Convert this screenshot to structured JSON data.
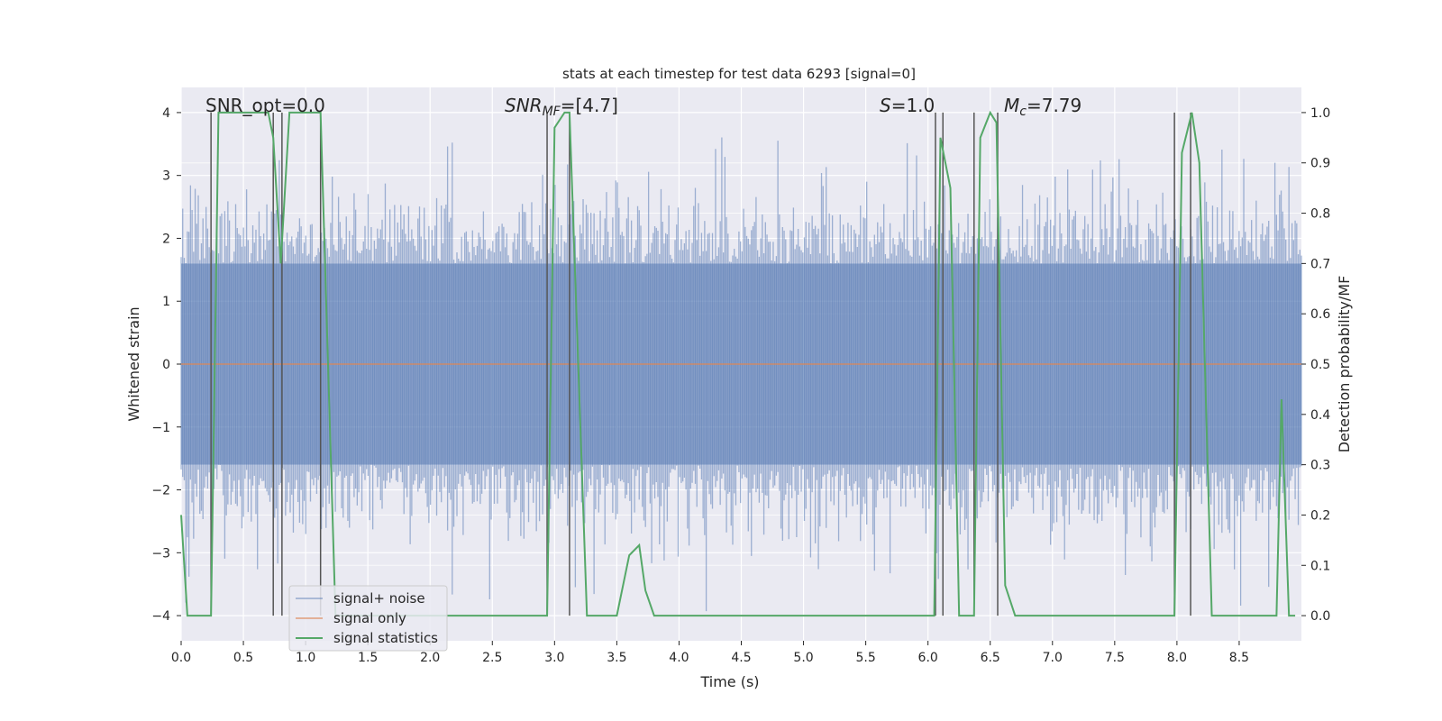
{
  "chart_data": {
    "type": "line",
    "title": "stats at each timestep for test data 6293 [signal=0]",
    "xlabel": "Time (s)",
    "ylabel_left": "Whitened strain",
    "ylabel_right": "Detection probability/MF",
    "xlim": [
      0,
      9.0
    ],
    "ylim_left": [
      -4.4,
      4.4
    ],
    "ylim_right": [
      -0.05,
      1.05
    ],
    "xticks": [
      0.0,
      0.5,
      1.0,
      1.5,
      2.0,
      2.5,
      3.0,
      3.5,
      4.0,
      4.5,
      5.0,
      5.5,
      6.0,
      6.5,
      7.0,
      7.5,
      8.0,
      8.5
    ],
    "yticks_left": [
      4,
      3,
      2,
      1,
      0,
      -1,
      -2,
      -3,
      -4
    ],
    "yticks_right": [
      1.0,
      0.9,
      0.8,
      0.7,
      0.6,
      0.5,
      0.4,
      0.3,
      0.2,
      0.1,
      0.0
    ],
    "legend": {
      "position": "lower-left",
      "entries": [
        "signal+ noise",
        "signal only",
        "signal statistics"
      ]
    },
    "colors": {
      "noise": "#4c72b0",
      "signal": "#dd8452",
      "stats": "#55a868",
      "vlines": "#555555",
      "bg": "#eaeaf2",
      "grid": "#ffffff"
    },
    "annotations": {
      "snr_opt": "SNR_opt=0.0",
      "snr_mf_main": "SNR",
      "snr_mf_sub": "MF",
      "snr_mf_value": "=[4.7]",
      "s_main": "S",
      "s_value": "=1.0",
      "mc_main": "M",
      "mc_sub": "c",
      "mc_value": "=7.79"
    },
    "noise_envelope": {
      "typical_amplitude": 1.6,
      "max_amplitude": 4.0,
      "samples": 720
    },
    "signal_only": {
      "value": 0.0
    },
    "vlines_x": [
      0.24,
      0.74,
      0.81,
      1.12,
      2.94,
      3.12,
      6.06,
      6.12,
      6.37,
      6.56,
      7.98,
      8.11
    ],
    "stats": {
      "x": [
        0.0,
        0.05,
        0.24,
        0.3,
        0.7,
        0.74,
        0.8,
        0.87,
        1.12,
        1.24,
        1.5,
        2.94,
        3.0,
        3.08,
        3.12,
        3.26,
        3.5,
        3.6,
        3.68,
        3.73,
        3.8,
        4.3,
        4.37,
        4.5,
        6.05,
        6.1,
        6.18,
        6.25,
        6.37,
        6.42,
        6.5,
        6.55,
        6.62,
        6.7,
        7.98,
        8.04,
        8.12,
        8.18,
        8.28,
        8.75,
        8.8,
        8.84,
        8.9,
        8.95
      ],
      "y": [
        0.2,
        0.0,
        0.0,
        1.0,
        1.0,
        0.95,
        0.7,
        1.0,
        1.0,
        0.0,
        0.0,
        0.0,
        0.97,
        1.0,
        1.0,
        0.0,
        0.0,
        0.12,
        0.14,
        0.05,
        0.0,
        0.0,
        0.0,
        0.0,
        0.0,
        0.95,
        0.85,
        0.0,
        0.0,
        0.95,
        1.0,
        0.98,
        0.06,
        0.0,
        0.0,
        0.92,
        1.0,
        0.9,
        0.0,
        0.0,
        0.0,
        0.43,
        0.0,
        0.0
      ]
    }
  }
}
